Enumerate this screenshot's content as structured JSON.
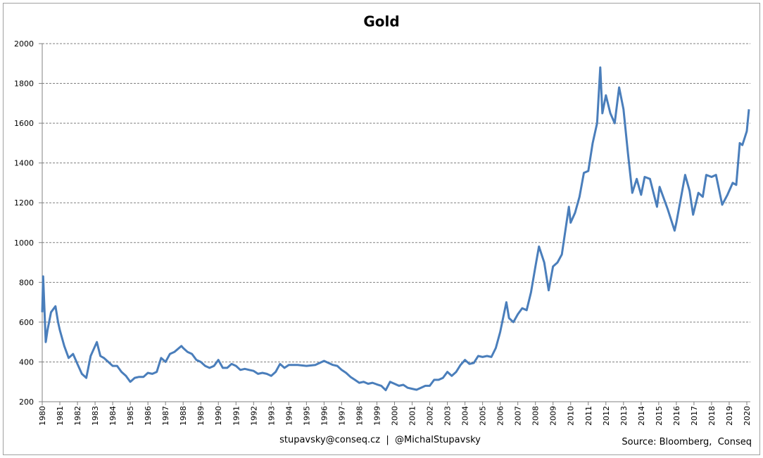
{
  "chart_data": {
    "type": "line",
    "title": "Gold",
    "footer_left": "stupavsky@conseq.cz  |  @MichalStupavsky",
    "footer_right": "Source: Bloomberg,  Conseq",
    "series": [
      {
        "name": "Gold",
        "color": "#4a7ebb",
        "x": [
          1980.0,
          1980.05,
          1980.2,
          1980.3,
          1980.5,
          1980.75,
          1980.9,
          1981.0,
          1981.25,
          1981.5,
          1981.75,
          1982.0,
          1982.25,
          1982.5,
          1982.75,
          1983.0,
          1983.1,
          1983.3,
          1983.5,
          1983.75,
          1984.0,
          1984.25,
          1984.5,
          1984.75,
          1985.0,
          1985.25,
          1985.5,
          1985.75,
          1986.0,
          1986.25,
          1986.5,
          1986.75,
          1987.0,
          1987.25,
          1987.5,
          1987.9,
          1988.0,
          1988.25,
          1988.5,
          1988.75,
          1989.0,
          1989.25,
          1989.5,
          1989.75,
          1990.0,
          1990.25,
          1990.5,
          1990.75,
          1991.0,
          1991.25,
          1991.5,
          1991.75,
          1992.0,
          1992.25,
          1992.5,
          1992.75,
          1993.0,
          1993.25,
          1993.5,
          1993.75,
          1994.0,
          1994.5,
          1995.0,
          1995.5,
          1996.0,
          1996.25,
          1996.5,
          1996.75,
          1997.0,
          1997.25,
          1997.5,
          1997.75,
          1998.0,
          1998.25,
          1998.5,
          1998.75,
          1999.0,
          1999.25,
          1999.5,
          1999.75,
          2000.0,
          2000.25,
          2000.5,
          2000.75,
          2001.0,
          2001.25,
          2001.5,
          2001.75,
          2002.0,
          2002.25,
          2002.5,
          2002.75,
          2003.0,
          2003.25,
          2003.5,
          2003.75,
          2004.0,
          2004.25,
          2004.5,
          2004.75,
          2005.0,
          2005.25,
          2005.5,
          2005.75,
          2006.0,
          2006.35,
          2006.5,
          2006.75,
          2007.0,
          2007.25,
          2007.5,
          2007.75,
          2008.0,
          2008.2,
          2008.5,
          2008.75,
          2009.0,
          2009.25,
          2009.5,
          2009.9,
          2010.0,
          2010.25,
          2010.5,
          2010.75,
          2011.0,
          2011.25,
          2011.5,
          2011.68,
          2011.8,
          2012.0,
          2012.25,
          2012.5,
          2012.75,
          2013.0,
          2013.25,
          2013.5,
          2013.75,
          2014.0,
          2014.2,
          2014.5,
          2014.9,
          2015.05,
          2015.5,
          2015.9,
          2016.0,
          2016.5,
          2016.75,
          2016.95,
          2017.25,
          2017.5,
          2017.7,
          2018.0,
          2018.25,
          2018.6,
          2018.9,
          2019.2,
          2019.4,
          2019.6,
          2019.75,
          2020.0,
          2020.12
        ],
        "values": [
          650,
          830,
          500,
          560,
          650,
          680,
          600,
          560,
          480,
          420,
          440,
          390,
          340,
          320,
          430,
          480,
          500,
          430,
          420,
          400,
          380,
          380,
          350,
          330,
          300,
          320,
          325,
          325,
          345,
          340,
          350,
          420,
          400,
          440,
          450,
          480,
          470,
          450,
          440,
          410,
          400,
          380,
          370,
          380,
          410,
          370,
          370,
          390,
          380,
          360,
          365,
          360,
          355,
          340,
          345,
          340,
          330,
          350,
          390,
          370,
          385,
          385,
          380,
          385,
          405,
          395,
          385,
          380,
          360,
          345,
          325,
          310,
          295,
          300,
          290,
          295,
          287,
          280,
          258,
          300,
          290,
          280,
          285,
          270,
          265,
          260,
          270,
          280,
          280,
          310,
          310,
          320,
          350,
          330,
          350,
          385,
          410,
          390,
          395,
          430,
          425,
          430,
          425,
          470,
          550,
          700,
          620,
          600,
          640,
          670,
          660,
          750,
          880,
          980,
          900,
          760,
          880,
          900,
          940,
          1180,
          1100,
          1150,
          1230,
          1350,
          1360,
          1500,
          1600,
          1880,
          1650,
          1740,
          1650,
          1600,
          1780,
          1670,
          1450,
          1250,
          1320,
          1240,
          1330,
          1320,
          1180,
          1280,
          1170,
          1060,
          1100,
          1340,
          1260,
          1140,
          1250,
          1230,
          1340,
          1330,
          1340,
          1190,
          1240,
          1300,
          1290,
          1500,
          1490,
          1560,
          1670
        ]
      }
    ],
    "xlim": [
      1980,
      2020.2
    ],
    "xticks": [
      1980,
      1981,
      1982,
      1983,
      1984,
      1985,
      1986,
      1987,
      1988,
      1989,
      1990,
      1991,
      1992,
      1993,
      1994,
      1995,
      1996,
      1997,
      1998,
      1999,
      2000,
      2001,
      2002,
      2003,
      2004,
      2005,
      2006,
      2007,
      2008,
      2009,
      2010,
      2011,
      2012,
      2013,
      2014,
      2015,
      2016,
      2017,
      2018,
      2019,
      2020
    ],
    "ylim": [
      200,
      2000
    ],
    "yticks": [
      200,
      400,
      600,
      800,
      1000,
      1200,
      1400,
      1600,
      1800,
      2000
    ],
    "grid": true
  }
}
